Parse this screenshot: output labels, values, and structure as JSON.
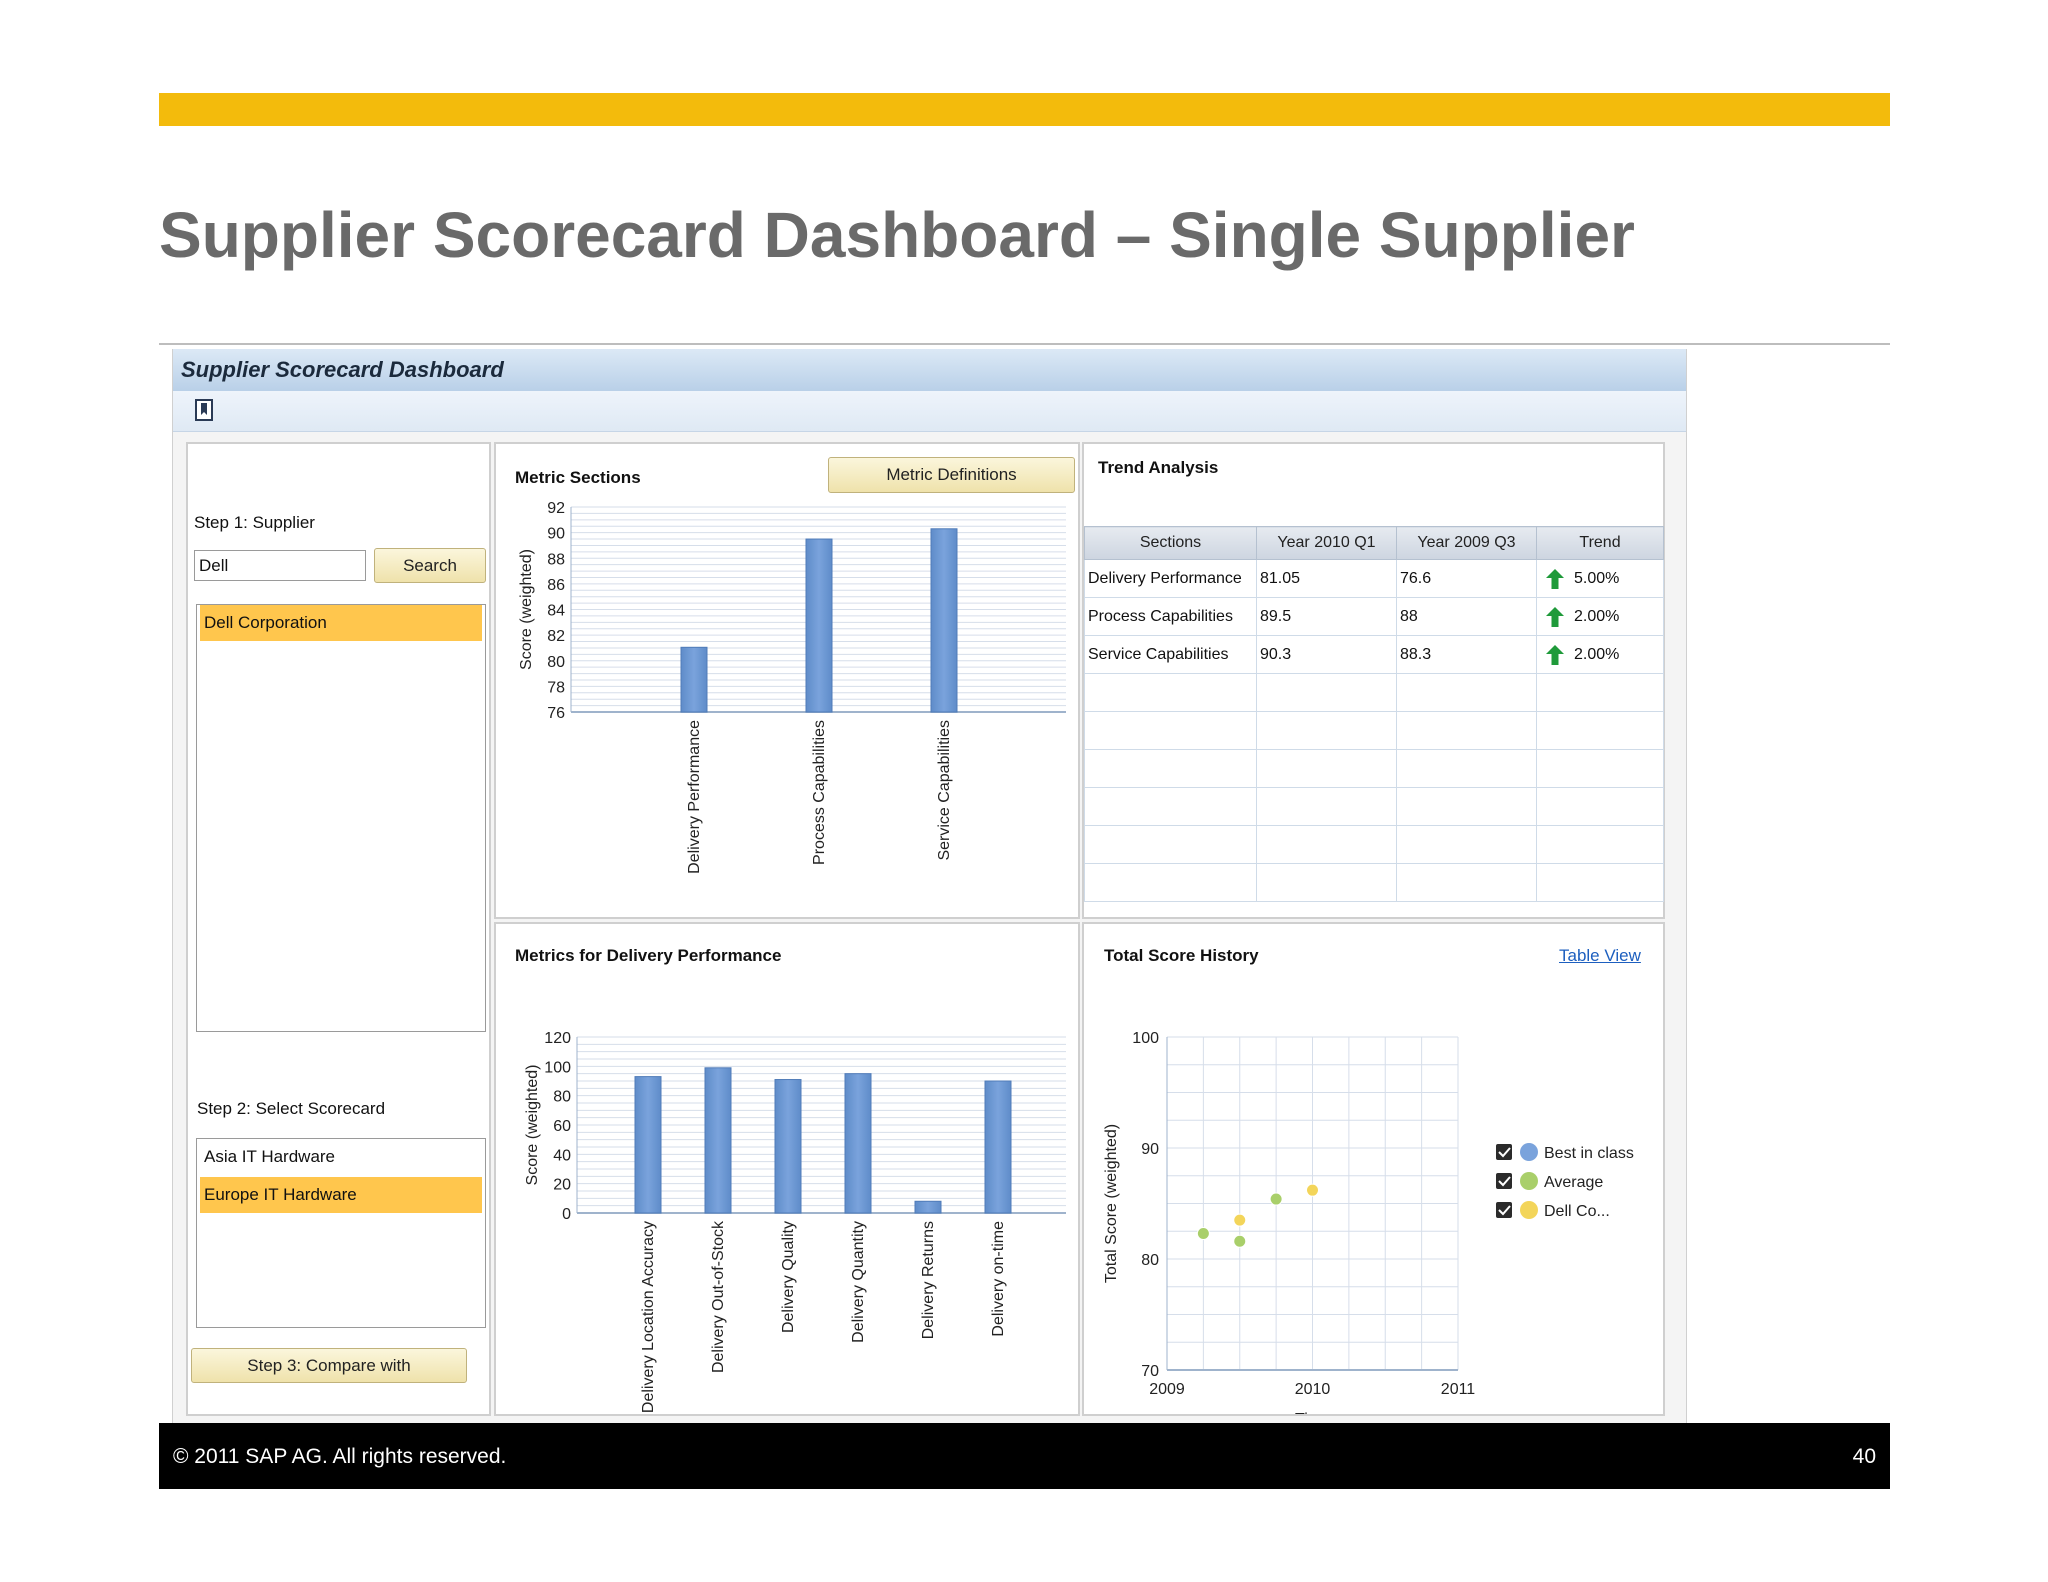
{
  "slide": {
    "title": "Supplier Scorecard Dashboard – Single Supplier"
  },
  "footer": {
    "copyright": "© 2011 SAP AG. All rights reserved.",
    "page": "40"
  },
  "app": {
    "title": "Supplier Scorecard Dashboard",
    "bookmark_icon": "bookmark-icon"
  },
  "left_panel": {
    "step1_label": "Step 1: Supplier",
    "supplier_input_value": "Dell",
    "search_button": "Search",
    "supplier_results": [
      {
        "label": "Dell Corporation",
        "selected": true
      }
    ],
    "step2_label": "Step 2: Select Scorecard",
    "scorecards": [
      {
        "label": "Asia IT Hardware",
        "selected": false
      },
      {
        "label": "Europe IT Hardware",
        "selected": true
      }
    ],
    "step3_button": "Step 3: Compare with",
    "selection_color": "#ffc64d"
  },
  "metric_sections": {
    "title": "Metric Sections",
    "button": "Metric Definitions"
  },
  "trend_analysis": {
    "title": "Trend Analysis",
    "columns": [
      "Sections",
      "Year 2010 Q1",
      "Year 2009 Q3",
      "Trend"
    ],
    "rows": [
      {
        "section": "Delivery Performance",
        "y2010q1": "81.05",
        "y2009q3": "76.6",
        "trend": "5.00%",
        "icon": "up-arrow-icon"
      },
      {
        "section": "Process Capabilities",
        "y2010q1": "89.5",
        "y2009q3": "88",
        "trend": "2.00%",
        "icon": "up-arrow-icon"
      },
      {
        "section": "Service Capabilities",
        "y2010q1": "90.3",
        "y2009q3": "88.3",
        "trend": "2.00%",
        "icon": "up-arrow-icon"
      }
    ],
    "empty_rows": 6,
    "arrow_color": "#1f9a3a"
  },
  "delivery_metrics": {
    "title": "Metrics for Delivery Performance"
  },
  "total_score_history": {
    "title": "Total Score History",
    "table_view_link": "Table View"
  },
  "chart_data": [
    {
      "id": "metric-sections",
      "type": "bar",
      "ylabel": "Score (weighted)",
      "ylim": [
        76,
        92
      ],
      "yticks": [
        92,
        90,
        88,
        86,
        84,
        82,
        80,
        78,
        76
      ],
      "categories": [
        "Delivery Performance",
        "Process Capabilities",
        "Service Capabilities"
      ],
      "values": [
        81.05,
        89.5,
        90.3
      ],
      "bar_color": "#7aa3dc",
      "grid": true
    },
    {
      "id": "delivery-metrics",
      "type": "bar",
      "ylabel": "Score (weighted)",
      "ylim": [
        0,
        120
      ],
      "yticks": [
        120,
        100,
        80,
        60,
        40,
        20,
        0
      ],
      "categories": [
        "Delivery Location Accuracy",
        "Delivery Out-of-Stock",
        "Delivery Quality",
        "Delivery Quantity",
        "Delivery Returns",
        "Delivery on-time"
      ],
      "values": [
        93,
        99,
        91,
        95,
        8,
        90
      ],
      "bar_color": "#7aa3dc",
      "grid": true
    },
    {
      "id": "total-score-history",
      "type": "scatter",
      "xlabel": "Time",
      "ylabel": "Total Score (weighted)",
      "xlim": [
        2009,
        2011
      ],
      "ylim": [
        70,
        100
      ],
      "xticks": [
        2009,
        2010,
        2011
      ],
      "yticks": [
        100,
        90,
        80,
        70
      ],
      "grid": true,
      "legend_position": "right",
      "series": [
        {
          "name": "Best in class",
          "color": "#7aa3dc",
          "points": []
        },
        {
          "name": "Average",
          "color": "#a9cf6a",
          "points": [
            [
              2009.25,
              82.3
            ],
            [
              2009.5,
              81.6
            ],
            [
              2009.75,
              85.4
            ]
          ]
        },
        {
          "name": "Dell Co...",
          "color": "#f3d55a",
          "points": [
            [
              2009.5,
              83.5
            ],
            [
              2010.0,
              86.2
            ]
          ]
        }
      ]
    }
  ]
}
